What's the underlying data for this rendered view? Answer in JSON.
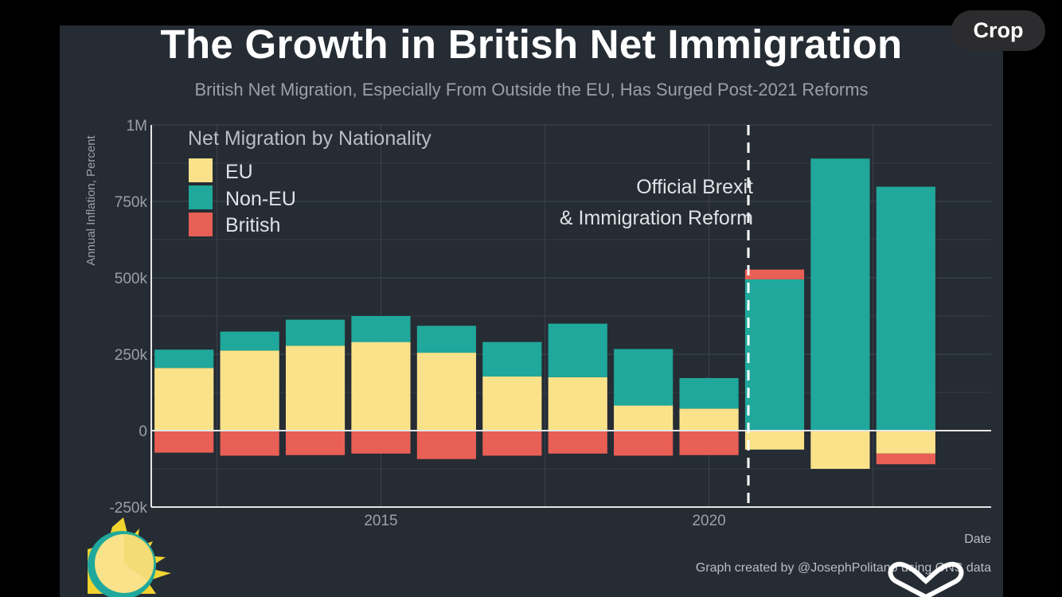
{
  "toolbar": {
    "crop_label": "Crop"
  },
  "colors": {
    "panel": "#262c34",
    "eu": "#f9e28a",
    "non_eu": "#1fa89b",
    "british": "#e85f55",
    "grid": "#3b424b",
    "axis": "#e6e6e6",
    "text_light": "#dfe2e6",
    "text_muted": "#9aa0a8"
  },
  "chart_data": {
    "type": "bar",
    "stacked": true,
    "title": "The Growth in British Net Immigration",
    "subtitle": "British Net Migration, Especially From Outside the EU, Has Surged Post-2021 Reforms",
    "xlabel": "Date",
    "ylabel": "Annual Inflation, Percent",
    "ylim": [
      -250000,
      1000000
    ],
    "xlim": [
      2011.5,
      2024.3
    ],
    "yticks": [
      -250000,
      0,
      250000,
      500000,
      750000,
      1000000
    ],
    "ytick_labels": [
      "-250k",
      "0",
      "250k",
      "500k",
      "750k",
      "1M"
    ],
    "xticks": [
      2015,
      2020
    ],
    "xtick_labels": [
      "2015",
      "2020"
    ],
    "x": [
      2012,
      2013,
      2014,
      2015,
      2016,
      2017,
      2018,
      2019,
      2020,
      2021,
      2022,
      2023
    ],
    "legend": {
      "title": "Net Migration by Nationality",
      "position": "top-left"
    },
    "series": [
      {
        "name": "EU",
        "color": "#f9e28a",
        "values": [
          205000,
          262000,
          278000,
          290000,
          255000,
          177000,
          175000,
          82000,
          72000,
          -62000,
          -125000,
          -75000
        ]
      },
      {
        "name": "Non-EU",
        "color": "#1fa89b",
        "values": [
          60000,
          62000,
          85000,
          85000,
          88000,
          113000,
          175000,
          185000,
          100000,
          495000,
          890000,
          798000
        ]
      },
      {
        "name": "British",
        "color": "#e85f55",
        "values": [
          -72000,
          -82000,
          -80000,
          -75000,
          -93000,
          -82000,
          -75000,
          -82000,
          -80000,
          32000,
          0,
          -35000
        ]
      }
    ],
    "annotation": {
      "x": 2020.6,
      "text_line1": "Official Brexit",
      "text_line2": "& Immigration Reform"
    },
    "credit": "Graph created by @JosephPolitano using ONS data",
    "grid": true
  }
}
